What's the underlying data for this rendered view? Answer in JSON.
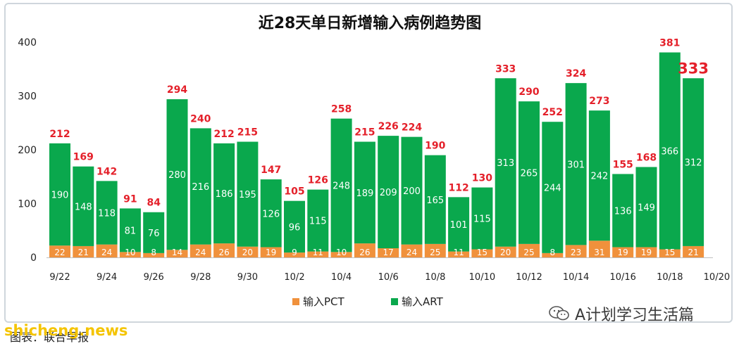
{
  "chart_data": {
    "type": "bar",
    "stacked": true,
    "title": "近28天单日新增输入病例趋势图",
    "categories": [
      "9/22",
      "9/23",
      "9/24",
      "9/25",
      "9/26",
      "9/27",
      "9/28",
      "9/29",
      "9/30",
      "10/1",
      "10/2",
      "10/3",
      "10/4",
      "10/5",
      "10/6",
      "10/7",
      "10/8",
      "10/9",
      "10/10",
      "10/11",
      "10/12",
      "10/13",
      "10/14",
      "10/15",
      "10/16",
      "10/17",
      "10/18",
      "10/19"
    ],
    "x_tick_labels": [
      "9/22",
      "9/24",
      "9/26",
      "9/28",
      "9/30",
      "10/2",
      "10/4",
      "10/6",
      "10/8",
      "10/10",
      "10/12",
      "10/14",
      "10/16",
      "10/18",
      "10/20"
    ],
    "series": [
      {
        "name": "输入PCT",
        "color": "#f0913c",
        "values": [
          22,
          21,
          24,
          10,
          8,
          14,
          24,
          26,
          20,
          19,
          9,
          11,
          10,
          26,
          17,
          24,
          25,
          11,
          15,
          20,
          25,
          8,
          23,
          31,
          19,
          19,
          15,
          21
        ]
      },
      {
        "name": "输入ART",
        "color": "#0aa84d",
        "values": [
          190,
          148,
          118,
          81,
          76,
          280,
          216,
          186,
          195,
          126,
          96,
          115,
          248,
          189,
          209,
          200,
          165,
          101,
          115,
          313,
          265,
          244,
          301,
          242,
          136,
          149,
          366,
          312
        ]
      }
    ],
    "totals": [
      212,
      169,
      142,
      91,
      84,
      294,
      240,
      212,
      215,
      147,
      105,
      126,
      258,
      215,
      226,
      224,
      190,
      112,
      130,
      333,
      290,
      252,
      324,
      273,
      155,
      168,
      381,
      333
    ],
    "highlight_last_total": true,
    "ylim": [
      0,
      400
    ],
    "yticks": [
      0,
      100,
      200,
      300,
      400
    ],
    "grid": false,
    "legend_position": "bottom"
  },
  "watermarks": {
    "right": "A计划学习生活篇",
    "left": "shicheng.news",
    "source": "图表：联合早报"
  }
}
